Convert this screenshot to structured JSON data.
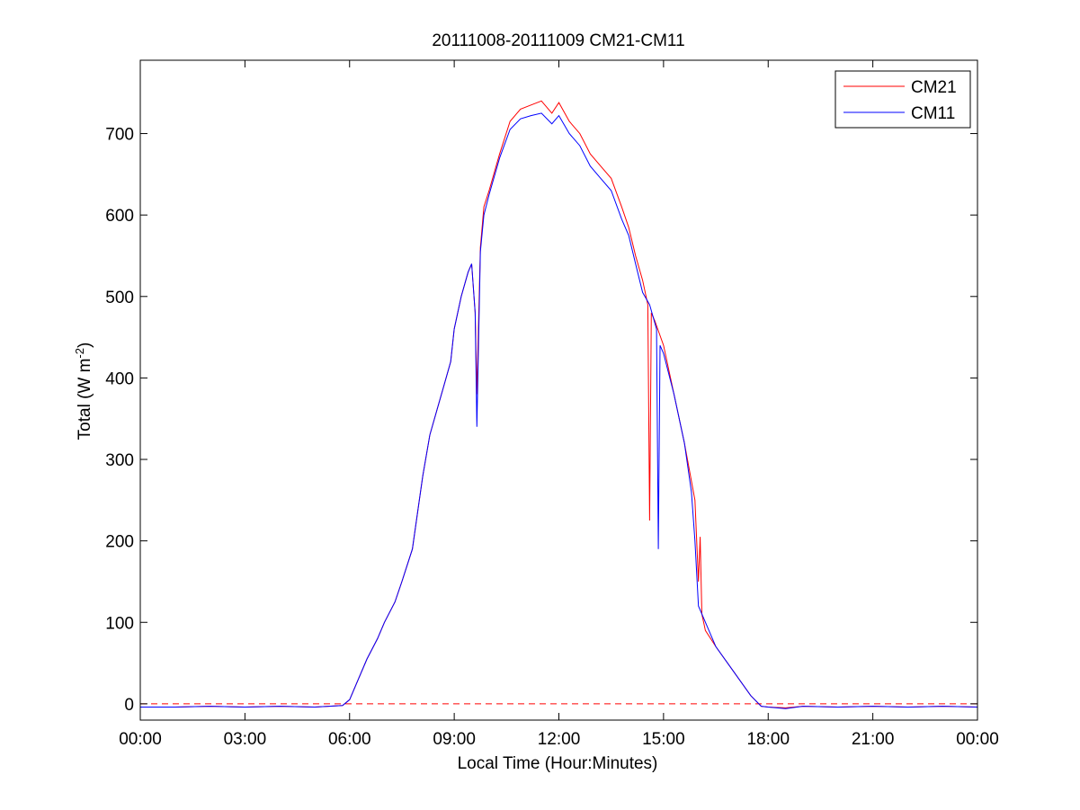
{
  "chart_data": {
    "type": "line",
    "title": "20111008-20111009 CM21-CM11",
    "xlabel": "Local Time (Hour:Minutes)",
    "ylabel_main": "Total (W m",
    "ylabel_sup": "-2",
    "ylabel_close": ")",
    "xlim": [
      0,
      24
    ],
    "ylim": [
      -20,
      790
    ],
    "x_tick_values": [
      0,
      3,
      6,
      9,
      12,
      15,
      18,
      21,
      24
    ],
    "x_tick_labels": [
      "00:00",
      "03:00",
      "06:00",
      "09:00",
      "12:00",
      "15:00",
      "18:00",
      "21:00",
      "00:00"
    ],
    "y_tick_values": [
      0,
      100,
      200,
      300,
      400,
      500,
      600,
      700
    ],
    "y_tick_labels": [
      "0",
      "100",
      "200",
      "300",
      "400",
      "500",
      "600",
      "700"
    ],
    "grid": false,
    "legend_position": "top-right",
    "reference_line": {
      "y": 0,
      "style": "dashed",
      "color": "#ff0000"
    },
    "series": [
      {
        "name": "CM21",
        "color": "#ff0000",
        "x": [
          0,
          1,
          2,
          3,
          4,
          5,
          5.8,
          6.0,
          6.2,
          6.5,
          6.8,
          7.0,
          7.3,
          7.5,
          7.8,
          8.0,
          8.1,
          8.3,
          8.5,
          8.7,
          8.9,
          9.0,
          9.2,
          9.4,
          9.5,
          9.6,
          9.65,
          9.75,
          9.85,
          10.0,
          10.3,
          10.6,
          10.9,
          11.2,
          11.5,
          11.8,
          12.0,
          12.3,
          12.6,
          12.9,
          13.2,
          13.5,
          13.8,
          14.0,
          14.2,
          14.4,
          14.55,
          14.6,
          14.65,
          14.75,
          15.0,
          15.3,
          15.6,
          15.9,
          16.0,
          16.05,
          16.1,
          16.15,
          16.2,
          16.5,
          17.0,
          17.5,
          17.8,
          18.0,
          18.5,
          19,
          20,
          21,
          22,
          23,
          24
        ],
        "y": [
          -4,
          -4,
          -3,
          -4,
          -3,
          -4,
          -2,
          5,
          25,
          55,
          80,
          100,
          125,
          150,
          190,
          250,
          280,
          330,
          360,
          390,
          420,
          460,
          500,
          530,
          540,
          480,
          380,
          560,
          610,
          630,
          675,
          715,
          730,
          735,
          740,
          725,
          738,
          715,
          700,
          675,
          660,
          645,
          610,
          585,
          550,
          520,
          490,
          225,
          480,
          470,
          440,
          380,
          320,
          250,
          150,
          205,
          110,
          100,
          90,
          70,
          40,
          10,
          -3,
          -4,
          -5,
          -3,
          -4,
          -3,
          -4,
          -3,
          -4
        ]
      },
      {
        "name": "CM11",
        "color": "#0000ff",
        "x": [
          0,
          1,
          2,
          3,
          4,
          5,
          5.8,
          6.0,
          6.2,
          6.5,
          6.8,
          7.0,
          7.3,
          7.5,
          7.8,
          8.0,
          8.1,
          8.3,
          8.5,
          8.7,
          8.9,
          9.0,
          9.2,
          9.4,
          9.5,
          9.6,
          9.65,
          9.75,
          9.85,
          10.0,
          10.3,
          10.6,
          10.9,
          11.2,
          11.5,
          11.8,
          12.0,
          12.3,
          12.6,
          12.9,
          13.2,
          13.5,
          13.8,
          14.0,
          14.2,
          14.4,
          14.6,
          14.8,
          14.85,
          14.9,
          15.0,
          15.3,
          15.6,
          15.8,
          15.9,
          16.0,
          16.5,
          17.0,
          17.5,
          17.8,
          18.0,
          18.5,
          19,
          20,
          21,
          22,
          23,
          24
        ],
        "y": [
          -4,
          -4,
          -3,
          -4,
          -3,
          -4,
          -2,
          5,
          25,
          55,
          80,
          100,
          125,
          150,
          190,
          250,
          280,
          330,
          360,
          390,
          420,
          460,
          500,
          530,
          540,
          480,
          340,
          555,
          600,
          625,
          670,
          705,
          718,
          722,
          725,
          712,
          722,
          700,
          685,
          660,
          645,
          630,
          595,
          575,
          540,
          505,
          490,
          460,
          190,
          440,
          430,
          380,
          320,
          260,
          200,
          120,
          70,
          40,
          10,
          -3,
          -4,
          -6,
          -3,
          -4,
          -3,
          -4,
          -3,
          -4
        ]
      }
    ]
  }
}
